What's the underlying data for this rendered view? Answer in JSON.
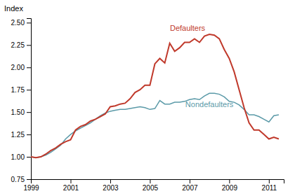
{
  "chart_data": {
    "type": "line",
    "ylabel": "Index",
    "xlim": [
      1999,
      2011.75
    ],
    "ylim": [
      0.75,
      2.55
    ],
    "xticks": [
      1999,
      2001,
      2003,
      2005,
      2007,
      2009,
      2011
    ],
    "yticks": [
      0.75,
      {
        "value": 1.0,
        "label": "1.00"
      },
      1.25,
      {
        "value": 1.5,
        "label": "1.50"
      },
      1.75,
      {
        "value": 2.0,
        "label": "2.00"
      },
      2.25,
      {
        "value": 2.5,
        "label": "2.50"
      }
    ],
    "grid": false,
    "x": [
      1999.0,
      1999.25,
      1999.5,
      1999.75,
      2000.0,
      2000.25,
      2000.5,
      2000.75,
      2001.0,
      2001.25,
      2001.5,
      2001.75,
      2002.0,
      2002.25,
      2002.5,
      2002.75,
      2003.0,
      2003.25,
      2003.5,
      2003.75,
      2004.0,
      2004.25,
      2004.5,
      2004.75,
      2005.0,
      2005.25,
      2005.5,
      2005.75,
      2006.0,
      2006.25,
      2006.5,
      2006.75,
      2007.0,
      2007.25,
      2007.5,
      2007.75,
      2008.0,
      2008.25,
      2008.5,
      2008.75,
      2009.0,
      2009.25,
      2009.5,
      2009.75,
      2010.0,
      2010.25,
      2010.5,
      2010.75,
      2011.0,
      2011.25,
      2011.5
    ],
    "series": [
      {
        "name": "Defaulters",
        "color": "#c0392b",
        "values": [
          1.0,
          0.99,
          1.0,
          1.03,
          1.07,
          1.1,
          1.14,
          1.17,
          1.19,
          1.3,
          1.34,
          1.36,
          1.4,
          1.42,
          1.45,
          1.48,
          1.56,
          1.57,
          1.59,
          1.6,
          1.65,
          1.72,
          1.75,
          1.8,
          1.8,
          2.04,
          2.1,
          2.05,
          2.27,
          2.18,
          2.22,
          2.28,
          2.28,
          2.32,
          2.28,
          2.35,
          2.37,
          2.36,
          2.32,
          2.2,
          2.1,
          1.95,
          1.75,
          1.55,
          1.38,
          1.3,
          1.3,
          1.25,
          1.2,
          1.22,
          1.2
        ]
      },
      {
        "name": "Nondefaulters",
        "color": "#5b9aa8",
        "values": [
          1.0,
          0.99,
          1.0,
          1.02,
          1.05,
          1.09,
          1.13,
          1.2,
          1.25,
          1.29,
          1.32,
          1.35,
          1.38,
          1.42,
          1.46,
          1.49,
          1.51,
          1.52,
          1.53,
          1.53,
          1.54,
          1.55,
          1.56,
          1.55,
          1.53,
          1.54,
          1.63,
          1.59,
          1.59,
          1.61,
          1.61,
          1.62,
          1.64,
          1.65,
          1.64,
          1.68,
          1.71,
          1.71,
          1.7,
          1.67,
          1.62,
          1.61,
          1.58,
          1.53,
          1.47,
          1.47,
          1.45,
          1.42,
          1.39,
          1.46,
          1.47
        ]
      }
    ]
  }
}
